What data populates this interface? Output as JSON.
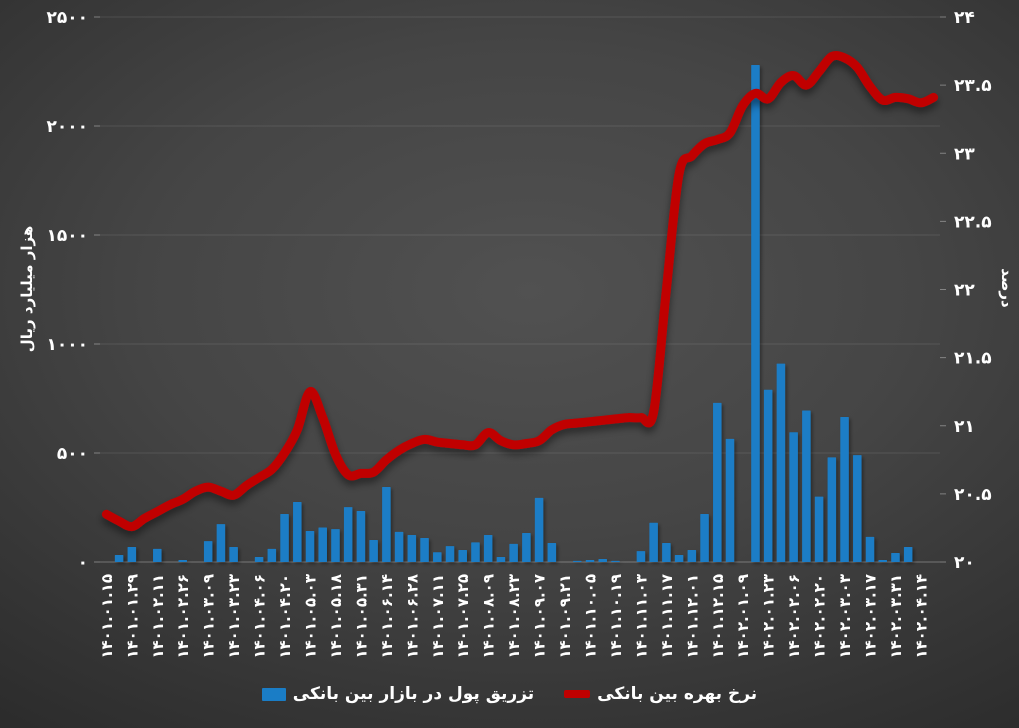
{
  "chart_data": {
    "type": "bar+line",
    "title": "",
    "background": "dark-gray-radial",
    "grid": "horizontal-faint",
    "bar_series": {
      "name": "تزریق پول در بازار بین بانکی",
      "color": "#1a7dc6",
      "axis": "left",
      "values": [
        0,
        32,
        69,
        0,
        60,
        0,
        9,
        0,
        96,
        174,
        69,
        0,
        23,
        60,
        220,
        275,
        142,
        158,
        151,
        252,
        234,
        101,
        344,
        138,
        124,
        110,
        45,
        73,
        55,
        90,
        124,
        23,
        83,
        133,
        294,
        87,
        0,
        5,
        9,
        14,
        5,
        0,
        50,
        180,
        87,
        32,
        55,
        220,
        730,
        565,
        0,
        2280,
        790,
        910,
        595,
        695,
        300,
        480,
        665,
        490,
        115,
        9,
        41,
        69,
        0,
        0
      ]
    },
    "line_series": {
      "name": "نرخ بهره بین بانکی",
      "color": "#c00000",
      "axis": "right",
      "values": [
        20.35,
        20.3,
        20.26,
        20.32,
        20.37,
        20.42,
        20.46,
        20.52,
        20.55,
        20.52,
        20.49,
        20.56,
        20.62,
        20.68,
        20.8,
        20.97,
        21.25,
        21.06,
        20.79,
        20.64,
        20.65,
        20.66,
        20.75,
        20.82,
        20.87,
        20.9,
        20.88,
        20.87,
        20.86,
        20.86,
        20.95,
        20.89,
        20.86,
        20.87,
        20.89,
        20.97,
        21.01,
        21.02,
        21.03,
        21.04,
        21.05,
        21.06,
        21.06,
        21.1,
        22.0,
        22.85,
        22.98,
        23.07,
        23.1,
        23.15,
        23.35,
        23.44,
        23.4,
        23.52,
        23.57,
        23.5,
        23.6,
        23.71,
        23.7,
        23.63,
        23.49,
        23.39,
        23.41,
        23.4,
        23.37,
        23.41
      ]
    },
    "x_labels": [
      "۱۴۰۱.۰۱.۱۵",
      "۱۴۰۱.۰۱.۲۹",
      "۱۴۰۱.۰۲.۱۱",
      "۱۴۰۱.۰۲.۲۶",
      "۱۴۰۱.۰۳.۰۹",
      "۱۴۰۱.۰۳.۲۳",
      "۱۴۰۱.۰۴.۰۶",
      "۱۴۰۱.۰۴.۲۰",
      "۱۴۰۱.۰۵.۰۳",
      "۱۴۰۱.۰۵.۱۸",
      "۱۴۰۱.۰۵.۳۱",
      "۱۴۰۱.۰۶.۱۴",
      "۱۴۰۱.۰۶.۲۸",
      "۱۴۰۱.۰۷.۱۱",
      "۱۴۰۱.۰۷.۲۵",
      "۱۴۰۱.۰۸.۰۹",
      "۱۴۰۱.۰۸.۲۳",
      "۱۴۰۱.۰۹.۰۷",
      "۱۴۰۱.۰۹.۲۱",
      "۱۴۰۱.۱۰.۰۵",
      "۱۴۰۱.۱۰.۱۹",
      "۱۴۰۱.۱۱.۰۳",
      "۱۴۰۱.۱۱.۱۷",
      "۱۴۰۱.۱۲.۰۱",
      "۱۴۰۱.۱۲.۱۵",
      "۱۴۰۲.۰۱.۰۹",
      "۱۴۰۲.۰۱.۲۳",
      "۱۴۰۲.۰۲.۰۶",
      "۱۴۰۲.۰۲.۲۰",
      "۱۴۰۲.۰۳.۰۳",
      "۱۴۰۲.۰۳.۱۷",
      "۱۴۰۲.۰۳.۳۱",
      "۱۴۰۲.۰۴.۱۴"
    ],
    "x_labels_every_n_bars": 2,
    "left_axis": {
      "title": "هزار میلیارد ریال",
      "min": 0,
      "max": 2500,
      "ticks": [
        {
          "label": "۲۵۰۰",
          "value": 2500
        },
        {
          "label": "۲۰۰۰",
          "value": 2000
        },
        {
          "label": "۱۵۰۰",
          "value": 1500
        },
        {
          "label": "۱۰۰۰",
          "value": 1000
        },
        {
          "label": "۵۰۰",
          "value": 500
        },
        {
          "label": "۰",
          "value": 0
        }
      ]
    },
    "right_axis": {
      "title": "درصد",
      "min": 20,
      "max": 24,
      "ticks": [
        {
          "label": "۲۴",
          "value": 24
        },
        {
          "label": "۲۳.۵",
          "value": 23.5
        },
        {
          "label": "۲۳",
          "value": 23
        },
        {
          "label": "۲۲.۵",
          "value": 22.5
        },
        {
          "label": "۲۲",
          "value": 22
        },
        {
          "label": "۲۱.۵",
          "value": 21.5
        },
        {
          "label": "۲۱",
          "value": 21
        },
        {
          "label": "۲۰.۵",
          "value": 20.5
        },
        {
          "label": "۲۰",
          "value": 20
        }
      ]
    },
    "legend_position": "bottom-center"
  }
}
